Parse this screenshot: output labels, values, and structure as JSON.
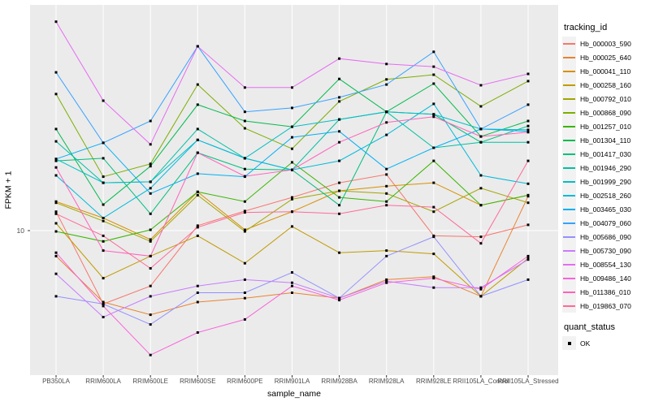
{
  "figure": {
    "background": "#FFFFFF",
    "panel_bg": "#EBEBEB",
    "grid_color": "#FFFFFF",
    "axis_text_color": "#4D4D4D",
    "point_color": "#000000"
  },
  "y_axis": {
    "tick_label": "10"
  },
  "legend": {
    "tracking": {
      "title": "tracking_id"
    },
    "quant": {
      "title": "quant_status",
      "items": [
        {
          "label": "OK",
          "marker": "black-square"
        }
      ]
    }
  },
  "chart_data": {
    "type": "line",
    "title": "",
    "x_label": "sample_name",
    "y_label": "FPKM + 1",
    "y_scale": "log10",
    "y_tick_values": [
      10
    ],
    "legend_position": "right",
    "grid": true,
    "point_marker": "square",
    "categories": [
      "PB350LA",
      "RRIM600LA",
      "RRIM600LE",
      "RRIM600SE",
      "RRIM600PE",
      "RRIM901LA",
      "RRIM928BA",
      "RRIM928LA",
      "RRIM928LE",
      "RRII105LA_Control",
      "RRII105LA_Stressed"
    ],
    "series": [
      {
        "name": "Hb_000003_590",
        "color": "#F8766D",
        "values": [
          12.5,
          4.2,
          5.2,
          10.6,
          12.6,
          14.8,
          17.6,
          19.4,
          9.4,
          9.3,
          10.7
        ]
      },
      {
        "name": "Hb_000025_640",
        "color": "#EA8331",
        "values": [
          7.4,
          4.3,
          3.7,
          4.3,
          4.5,
          4.8,
          4.5,
          5.6,
          5.8,
          4.6,
          15.0
        ]
      },
      {
        "name": "Hb_000041_110",
        "color": "#D89000",
        "values": [
          14.1,
          11.6,
          9.0,
          15.8,
          10.1,
          12.5,
          16.0,
          16.9,
          17.6,
          13.5,
          15.2
        ]
      },
      {
        "name": "Hb_000258_160",
        "color": "#C09B00",
        "values": [
          10.9,
          5.7,
          7.4,
          9.4,
          6.8,
          10.5,
          7.7,
          7.9,
          7.6,
          4.6,
          7.2
        ]
      },
      {
        "name": "Hb_000792_010",
        "color": "#A3A500",
        "values": [
          13.9,
          11.2,
          8.8,
          15.2,
          9.9,
          14.5,
          16.0,
          15.5,
          12.5,
          16.5,
          13.9
        ]
      },
      {
        "name": "Hb_000868_090",
        "color": "#7CAE00",
        "values": [
          50.2,
          18.9,
          22.0,
          56.2,
          33.5,
          26.3,
          46.0,
          59.7,
          63.1,
          43.4,
          58.5
        ]
      },
      {
        "name": "Hb_001257_010",
        "color": "#39B600",
        "values": [
          9.9,
          8.8,
          10.1,
          15.8,
          14.1,
          22.4,
          14.8,
          14.1,
          22.8,
          13.5,
          15.2
        ]
      },
      {
        "name": "Hb_001304_110",
        "color": "#00BB4E",
        "values": [
          33.2,
          13.6,
          21.4,
          44.3,
          36.5,
          34.1,
          60.0,
          40.7,
          56.8,
          30.4,
          36.5
        ]
      },
      {
        "name": "Hb_001417_030",
        "color": "#00BF7D",
        "values": [
          22.8,
          23.5,
          12.2,
          25.1,
          20.7,
          20.5,
          13.5,
          40.7,
          39.5,
          28.4,
          34.4
        ]
      },
      {
        "name": "Hb_001946_290",
        "color": "#00C1A3",
        "values": [
          28.7,
          17.6,
          17.8,
          33.2,
          23.5,
          20.5,
          37.2,
          40.7,
          26.6,
          28.4,
          28.4
        ]
      },
      {
        "name": "Hb_001999_290",
        "color": "#00BFC4",
        "values": [
          23.3,
          17.6,
          17.8,
          29.2,
          23.5,
          34.1,
          37.2,
          40.7,
          39.5,
          33.2,
          32.9
        ]
      },
      {
        "name": "Hb_002518_260",
        "color": "#00BBDA",
        "values": [
          19.2,
          11.6,
          16.5,
          29.2,
          23.5,
          20.5,
          22.8,
          31.0,
          44.7,
          19.2,
          17.4
        ]
      },
      {
        "name": "Hb_003465_030",
        "color": "#00B0F6",
        "values": [
          23.3,
          28.2,
          15.5,
          19.6,
          18.9,
          30.1,
          32.3,
          20.7,
          26.6,
          33.2,
          32.3
        ]
      },
      {
        "name": "Hb_004079_060",
        "color": "#35A2FF",
        "values": [
          64.9,
          28.2,
          36.5,
          88.3,
          40.7,
          42.6,
          48.3,
          56.2,
          82.7,
          33.2,
          44.3
        ]
      },
      {
        "name": "Hb_005686_090",
        "color": "#9590FF",
        "values": [
          4.6,
          4.2,
          3.3,
          4.8,
          4.8,
          6.1,
          4.5,
          7.4,
          9.3,
          4.6,
          5.6
        ]
      },
      {
        "name": "Hb_005730_090",
        "color": "#C77CFF",
        "values": [
          6.0,
          3.6,
          4.6,
          5.2,
          5.6,
          5.4,
          4.5,
          5.5,
          5.1,
          5.1,
          7.1
        ]
      },
      {
        "name": "Hb_008554_130",
        "color": "#E76BF3",
        "values": [
          118.0,
          46.4,
          27.7,
          88.3,
          54.2,
          54.2,
          76.3,
          71.6,
          69.4,
          55.7,
          63.7
        ]
      },
      {
        "name": "Hb_009486_140",
        "color": "#FA62DB",
        "values": [
          7.7,
          4.1,
          2.3,
          3.0,
          3.5,
          5.2,
          4.4,
          5.4,
          5.7,
          5.0,
          7.4
        ]
      },
      {
        "name": "Hb_011386_010",
        "color": "#FF62BC",
        "values": [
          21.1,
          7.9,
          7.4,
          25.1,
          19.0,
          20.5,
          28.4,
          35.9,
          38.4,
          30.4,
          32.0
        ]
      },
      {
        "name": "Hb_019863_070",
        "color": "#FF6A98",
        "values": [
          12.2,
          9.4,
          6.4,
          10.4,
          12.4,
          12.5,
          12.2,
          13.5,
          13.2,
          8.6,
          22.8
        ]
      }
    ]
  }
}
